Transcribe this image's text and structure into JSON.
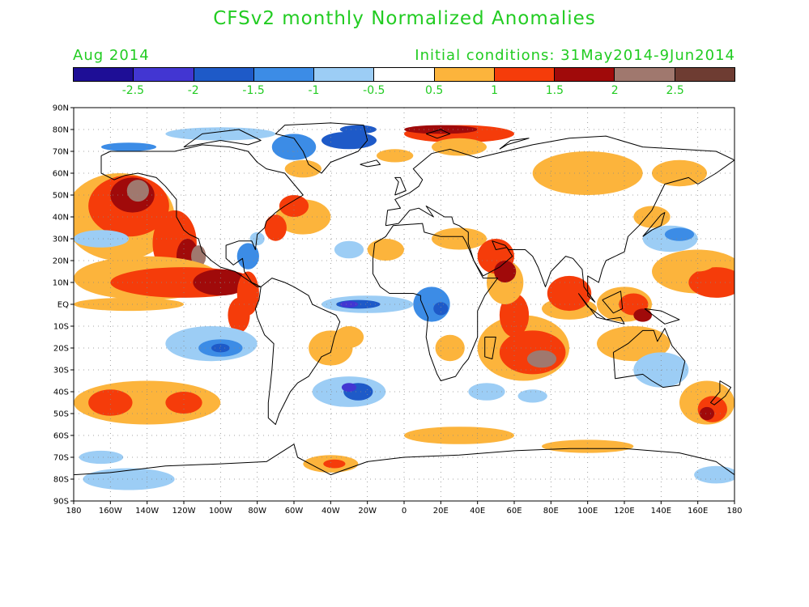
{
  "header": {
    "title": "CFSv2 monthly Normalized Anomalies",
    "valid_month": "Aug 2014",
    "initial_conditions": "Initial conditions: 31May2014-9Jun2014",
    "text_color": "#22cc22"
  },
  "colorbar": {
    "colors": [
      "#1e0e96",
      "#4236d2",
      "#1e5ac8",
      "#3c8ce6",
      "#9ccdf5",
      "#ffffff",
      "#fcb43c",
      "#f53c0a",
      "#a00a0a",
      "#a0786e",
      "#6e3c32"
    ],
    "labels": [
      "-2.5",
      "-2",
      "-1.5",
      "-1",
      "-0.5",
      "0.5",
      "1",
      "1.5",
      "2",
      "2.5"
    ]
  },
  "map": {
    "lat_labels": [
      "90N",
      "80N",
      "70N",
      "60N",
      "50N",
      "40N",
      "30N",
      "20N",
      "10N",
      "EQ",
      "10S",
      "20S",
      "30S",
      "40S",
      "50S",
      "60S",
      "70S",
      "80S",
      "90S"
    ],
    "lon_labels": [
      "180",
      "160W",
      "140W",
      "120W",
      "100W",
      "80W",
      "60W",
      "40W",
      "20W",
      "0",
      "20E",
      "40E",
      "60E",
      "80E",
      "100E",
      "120E",
      "140E",
      "160E",
      "180"
    ],
    "lat_range": [
      -90,
      90
    ],
    "lon_range": [
      -180,
      180
    ],
    "grid": "dotted"
  }
}
